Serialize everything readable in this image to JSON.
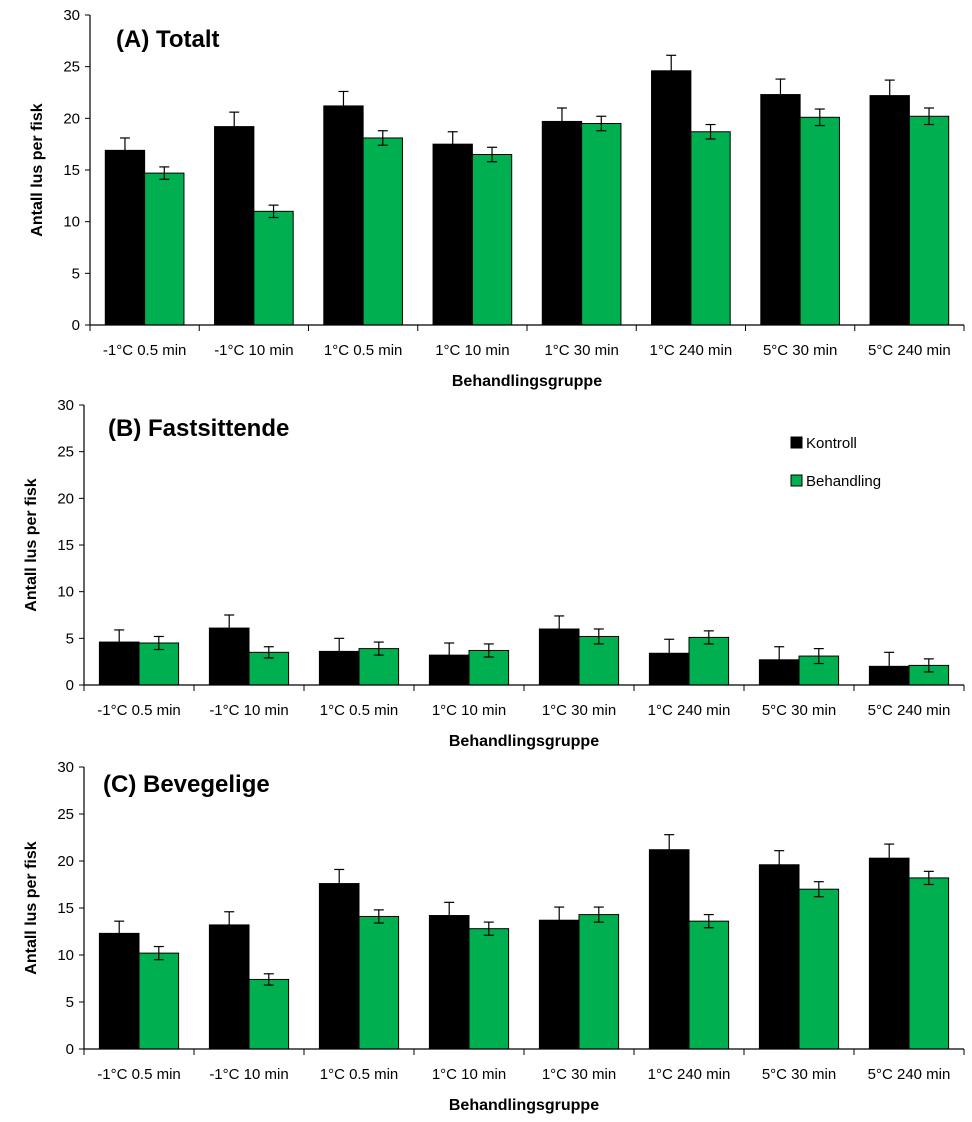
{
  "chart_data": [
    {
      "type": "bar",
      "title": "(A) Totalt",
      "xlabel": "Behandlingsgruppe",
      "ylabel": "Antall lus per fisk",
      "ylim": [
        0,
        30
      ],
      "yticks": [
        0,
        5,
        10,
        15,
        20,
        25,
        30
      ],
      "categories": [
        "-1°C 0.5 min",
        "-1°C 10 min",
        "1°C 0.5 min",
        "1°C 10 min",
        "1°C 30 min",
        "1°C 240 min",
        "5°C 30 min",
        "5°C 240 min"
      ],
      "series": [
        {
          "name": "Kontroll",
          "color": "#000000",
          "values": [
            16.9,
            19.2,
            21.2,
            17.5,
            19.7,
            24.6,
            22.3,
            22.2
          ],
          "errors": [
            1.2,
            1.4,
            1.4,
            1.2,
            1.3,
            1.5,
            1.5,
            1.5
          ]
        },
        {
          "name": "Behandling",
          "color": "#00b050",
          "values": [
            14.7,
            11.0,
            18.1,
            16.5,
            19.5,
            18.7,
            20.1,
            20.2
          ],
          "errors": [
            0.6,
            0.6,
            0.7,
            0.7,
            0.7,
            0.7,
            0.8,
            0.8
          ]
        }
      ],
      "legend": "none"
    },
    {
      "type": "bar",
      "title": "(B) Fastsittende",
      "xlabel": "Behandlingsgruppe",
      "ylabel": "Antall lus per fisk",
      "ylim": [
        0,
        30
      ],
      "yticks": [
        0,
        5,
        10,
        15,
        20,
        25,
        30
      ],
      "categories": [
        "-1°C 0.5 min",
        "-1°C 10 min",
        "1°C 0.5 min",
        "1°C 10 min",
        "1°C 30 min",
        "1°C 240 min",
        "5°C 30 min",
        "5°C 240 min"
      ],
      "series": [
        {
          "name": "Kontroll",
          "color": "#000000",
          "values": [
            4.6,
            6.1,
            3.6,
            3.2,
            6.0,
            3.4,
            2.7,
            2.0
          ],
          "errors": [
            1.3,
            1.4,
            1.4,
            1.3,
            1.4,
            1.5,
            1.4,
            1.5
          ]
        },
        {
          "name": "Behandling",
          "color": "#00b050",
          "values": [
            4.5,
            3.5,
            3.9,
            3.7,
            5.2,
            5.1,
            3.1,
            2.1
          ],
          "errors": [
            0.7,
            0.6,
            0.7,
            0.7,
            0.8,
            0.7,
            0.8,
            0.7
          ]
        }
      ],
      "legend": "top-right"
    },
    {
      "type": "bar",
      "title": "(C) Bevegelige",
      "xlabel": "Behandlingsgruppe",
      "ylabel": "Antall lus per fisk",
      "ylim": [
        0,
        30
      ],
      "yticks": [
        0,
        5,
        10,
        15,
        20,
        25,
        30
      ],
      "categories": [
        "-1°C 0.5 min",
        "-1°C 10 min",
        "1°C 0.5 min",
        "1°C 10 min",
        "1°C 30 min",
        "1°C 240 min",
        "5°C 30 min",
        "5°C 240 min"
      ],
      "series": [
        {
          "name": "Kontroll",
          "color": "#000000",
          "values": [
            12.3,
            13.2,
            17.6,
            14.2,
            13.7,
            21.2,
            19.6,
            20.3
          ],
          "errors": [
            1.3,
            1.4,
            1.5,
            1.4,
            1.4,
            1.6,
            1.5,
            1.5
          ]
        },
        {
          "name": "Behandling",
          "color": "#00b050",
          "values": [
            10.2,
            7.4,
            14.1,
            12.8,
            14.3,
            13.6,
            17.0,
            18.2
          ],
          "errors": [
            0.7,
            0.6,
            0.7,
            0.7,
            0.8,
            0.7,
            0.8,
            0.7
          ]
        }
      ],
      "legend": "none"
    }
  ]
}
